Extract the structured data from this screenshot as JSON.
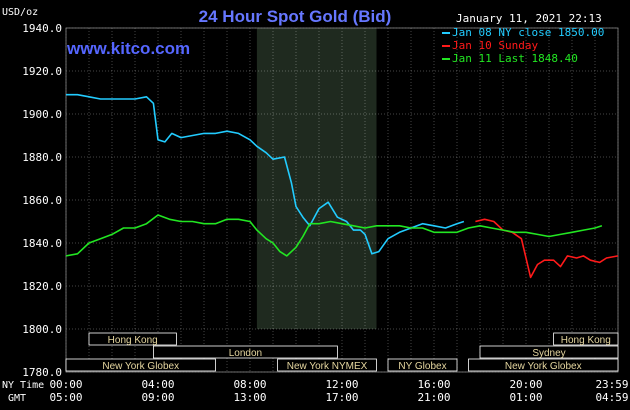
{
  "chart_data": {
    "type": "line",
    "title": "24 Hour Spot Gold (Bid)",
    "watermark": "www.kitco.com",
    "unit_label": "USD/oz",
    "timestamp": "January 11, 2021 22:13",
    "ylim": [
      1780,
      1940
    ],
    "yticks": [
      {
        "v": 1940,
        "label": "1940.0"
      },
      {
        "v": 1920,
        "label": "1920.0"
      },
      {
        "v": 1900,
        "label": "1900.0"
      },
      {
        "v": 1880,
        "label": "1880.0"
      },
      {
        "v": 1860,
        "label": "1860.0"
      },
      {
        "v": 1840,
        "label": "1840.0"
      },
      {
        "v": 1820,
        "label": "1820.0"
      },
      {
        "v": 1800,
        "label": "1800.0"
      },
      {
        "v": 1780,
        "label": "1780.0"
      }
    ],
    "xlim": [
      0,
      24
    ],
    "ny_time_label": "NY Time",
    "gmt_label": "GMT",
    "xticks": [
      {
        "h": 0,
        "ny": "00:00",
        "gmt": "05:00"
      },
      {
        "h": 4,
        "ny": "04:00",
        "gmt": "09:00"
      },
      {
        "h": 8,
        "ny": "08:00",
        "gmt": "13:00"
      },
      {
        "h": 12,
        "ny": "12:00",
        "gmt": "17:00"
      },
      {
        "h": 16,
        "ny": "16:00",
        "gmt": "21:00"
      },
      {
        "h": 20,
        "ny": "20:00",
        "gmt": "01:00"
      },
      {
        "h": 24,
        "ny": "23:59",
        "gmt": "04:59"
      }
    ],
    "shaded_range": [
      8.3,
      13.5
    ],
    "markets": [
      {
        "label": "Hong Kong",
        "start": 1.0,
        "end": 4.8,
        "row": 0
      },
      {
        "label": "London",
        "start": 3.8,
        "end": 11.8,
        "row": 1
      },
      {
        "label": "New York Globex",
        "start": 0.0,
        "end": 6.5,
        "row": 2
      },
      {
        "label": "New York NYMEX",
        "start": 9.2,
        "end": 13.5,
        "row": 2
      },
      {
        "label": "NY Globex",
        "start": 14.0,
        "end": 17.0,
        "row": 2
      },
      {
        "label": "Hong Kong",
        "start": 21.2,
        "end": 25.0,
        "row": 0
      },
      {
        "label": "Sydney",
        "start": 18.0,
        "end": 25.0,
        "row": 1
      },
      {
        "label": "New York Globex",
        "start": 17.5,
        "end": 24.0,
        "row": 2
      }
    ],
    "legend_position": "top-right",
    "series": [
      {
        "name": "Jan 08 NY close 1850.00",
        "color": "#22ccff",
        "x": [
          0,
          0.5,
          1,
          1.5,
          2,
          2.5,
          3,
          3.5,
          3.8,
          4,
          4.3,
          4.6,
          5,
          5.5,
          6,
          6.5,
          7,
          7.5,
          8,
          8.3,
          8.7,
          9,
          9.5,
          9.8,
          10,
          10.3,
          10.6,
          11,
          11.4,
          11.8,
          12.2,
          12.5,
          12.8,
          13,
          13.3,
          13.6,
          14,
          14.5,
          15,
          15.5,
          16,
          16.5,
          17,
          17.3
        ],
        "y": [
          1909,
          1909,
          1908,
          1907,
          1907,
          1907,
          1907,
          1908,
          1905,
          1888,
          1887,
          1891,
          1889,
          1890,
          1891,
          1891,
          1892,
          1891,
          1888,
          1885,
          1882,
          1879,
          1880,
          1868,
          1857,
          1852,
          1848,
          1856,
          1859,
          1852,
          1850,
          1846,
          1846,
          1844,
          1835,
          1836,
          1842,
          1845,
          1847,
          1849,
          1848,
          1847,
          1849,
          1850
        ]
      },
      {
        "name": "Jan 10 Sunday",
        "color": "#ff1a1a",
        "x": [
          17.8,
          18.2,
          18.6,
          19,
          19.4,
          19.8,
          20,
          20.2,
          20.5,
          20.8,
          21.2,
          21.5,
          21.8,
          22.2,
          22.5,
          22.8,
          23.2,
          23.5,
          24
        ],
        "y": [
          1850,
          1851,
          1850,
          1846,
          1845,
          1842,
          1833,
          1824,
          1830,
          1832,
          1832,
          1829,
          1834,
          1833,
          1834,
          1832,
          1831,
          1833,
          1834
        ]
      },
      {
        "name": "Jan 11 Last 1848.40",
        "color": "#22e622",
        "x": [
          0,
          0.5,
          1,
          1.5,
          2,
          2.5,
          3,
          3.5,
          4,
          4.5,
          5,
          5.5,
          6,
          6.5,
          7,
          7.5,
          8,
          8.3,
          8.7,
          9,
          9.3,
          9.6,
          10,
          10.3,
          10.6,
          11,
          11.5,
          12,
          12.5,
          13,
          13.5,
          14,
          14.5,
          15,
          15.5,
          16,
          16.5,
          17,
          17.5,
          18,
          18.5,
          19,
          19.5,
          20,
          20.5,
          21,
          21.5,
          22,
          22.5,
          23,
          23.3
        ],
        "y": [
          1834,
          1835,
          1840,
          1842,
          1844,
          1847,
          1847,
          1849,
          1853,
          1851,
          1850,
          1850,
          1849,
          1849,
          1851,
          1851,
          1850,
          1846,
          1842,
          1840,
          1836,
          1834,
          1838,
          1843,
          1849,
          1849,
          1850,
          1849,
          1848,
          1847,
          1848,
          1848,
          1848,
          1847,
          1847,
          1845,
          1845,
          1845,
          1847,
          1848,
          1847,
          1846,
          1845,
          1845,
          1844,
          1843,
          1844,
          1845,
          1846,
          1847,
          1848
        ]
      }
    ]
  }
}
